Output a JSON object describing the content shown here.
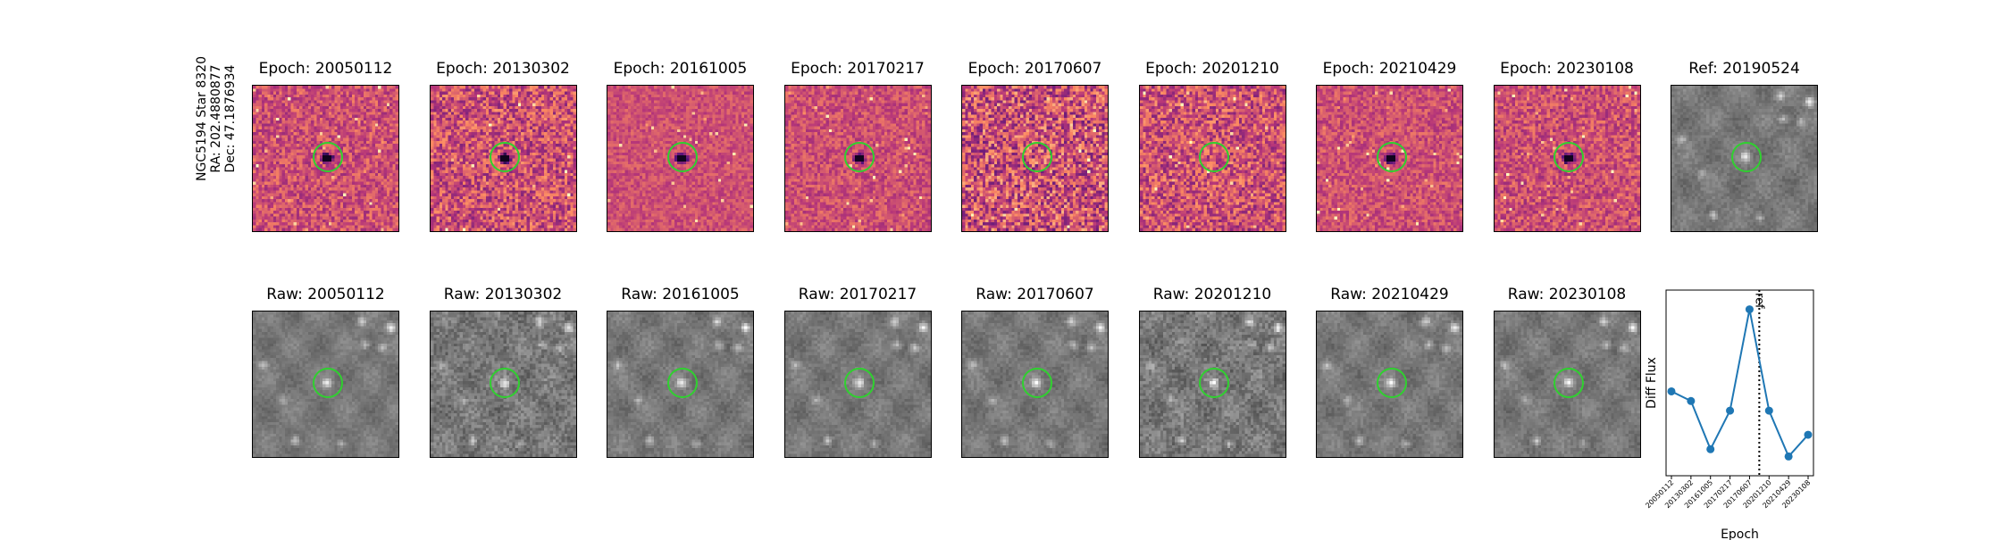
{
  "star": {
    "name": "NGC5194 Star 8320",
    "ra": "RA: 202.4880877",
    "dec": "Dec: 47.1876934"
  },
  "diff_panels": [
    {
      "title": "Epoch: 20050112",
      "cmap": "magma",
      "center": "dark",
      "noise": 0.55
    },
    {
      "title": "Epoch: 20130302",
      "cmap": "magma",
      "center": "dark",
      "noise": 0.75
    },
    {
      "title": "Epoch: 20161005",
      "cmap": "magma",
      "center": "dark",
      "noise": 0.35
    },
    {
      "title": "Epoch: 20170217",
      "cmap": "magma",
      "center": "dark",
      "noise": 0.45
    },
    {
      "title": "Epoch: 20170607",
      "cmap": "magma",
      "center": "none",
      "noise": 0.95
    },
    {
      "title": "Epoch: 20201210",
      "cmap": "magma",
      "center": "none",
      "noise": 0.75
    },
    {
      "title": "Epoch: 20210429",
      "cmap": "magma",
      "center": "dark",
      "noise": 0.45
    },
    {
      "title": "Epoch: 20230108",
      "cmap": "magma",
      "center": "dark",
      "noise": 0.55
    }
  ],
  "ref_panel": {
    "title": "Ref: 20190524",
    "cmap": "gray"
  },
  "raw_panels": [
    {
      "title": "Raw: 20050112",
      "noise": 0.25
    },
    {
      "title": "Raw: 20130302",
      "noise": 0.55
    },
    {
      "title": "Raw: 20161005",
      "noise": 0.3
    },
    {
      "title": "Raw: 20170217",
      "noise": 0.3
    },
    {
      "title": "Raw: 20170607",
      "noise": 0.3
    },
    {
      "title": "Raw: 20201210",
      "noise": 0.55
    },
    {
      "title": "Raw: 20210429",
      "noise": 0.3
    },
    {
      "title": "Raw: 20230108",
      "noise": 0.3
    }
  ],
  "colors": {
    "circle": "#2fd12f",
    "line": "#1f77b4"
  },
  "chart_data": {
    "type": "line",
    "title": "",
    "xlabel": "Epoch",
    "ylabel": "Diff Flux",
    "categories": [
      "20050112",
      "20130302",
      "20161005",
      "20170217",
      "20170607",
      "20201210",
      "20210429",
      "20230108"
    ],
    "series": [
      {
        "values": [
          0.42,
          0.38,
          0.18,
          0.34,
          0.76,
          0.34,
          0.15,
          0.24
        ]
      }
    ],
    "ylim": [
      0.07,
      0.84
    ],
    "reference_line": {
      "label": "ref",
      "position_between": [
        "20170607",
        "20201210"
      ],
      "style": "dotted"
    },
    "grid": false
  }
}
